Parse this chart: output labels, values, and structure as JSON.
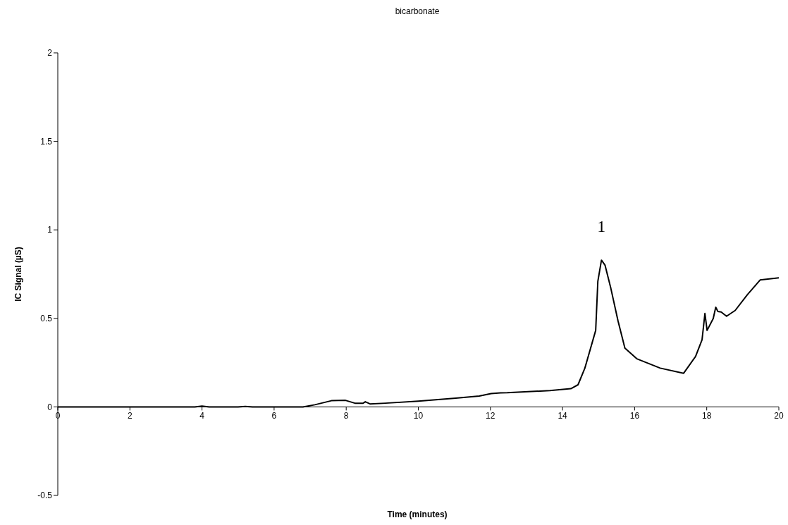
{
  "chart_data": {
    "type": "line",
    "title": "bicarbonate",
    "xlabel": "Time (minutes)",
    "ylabel": "IC Signal (µS)",
    "x": [
      0,
      1,
      2,
      3,
      3.8,
      4,
      4.2,
      5,
      5.2,
      5.4,
      6,
      6.8,
      7.13,
      7.59,
      7.98,
      8.24,
      8.47,
      8.53,
      8.66,
      9.09,
      10.0,
      11.04,
      11.69,
      12.02,
      12.28,
      12.47,
      13.65,
      14.23,
      14.43,
      14.62,
      14.92,
      14.98,
      15.08,
      15.18,
      15.34,
      15.54,
      15.73,
      16.06,
      16.71,
      17.36,
      17.69,
      17.87,
      17.95,
      18.01,
      18.18,
      18.25,
      18.31,
      18.4,
      18.55,
      18.79,
      19.12,
      19.48,
      20.0
    ],
    "series": [
      {
        "color": "#000000",
        "values": [
          0,
          0,
          0,
          0,
          0,
          0.005,
          0,
          0,
          0.003,
          0,
          0,
          0,
          0.012,
          0.035,
          0.037,
          0.021,
          0.021,
          0.029,
          0.017,
          0.021,
          0.032,
          0.049,
          0.061,
          0.075,
          0.079,
          0.08,
          0.092,
          0.103,
          0.125,
          0.219,
          0.432,
          0.71,
          0.829,
          0.8,
          0.67,
          0.485,
          0.332,
          0.272,
          0.219,
          0.19,
          0.285,
          0.379,
          0.528,
          0.432,
          0.499,
          0.563,
          0.539,
          0.536,
          0.512,
          0.545,
          0.632,
          0.717,
          0.729
        ]
      }
    ],
    "xlim": [
      0,
      20
    ],
    "xticks": [
      0,
      2,
      4,
      6,
      8,
      10,
      12,
      14,
      16,
      18,
      20
    ],
    "ylim": [
      -0.5,
      2
    ],
    "yticks": [
      -0.5,
      0,
      0.5,
      1,
      1.5,
      2
    ],
    "annotations": [
      {
        "text": "1",
        "x": 15.08,
        "y": 0.829
      }
    ],
    "grid": false,
    "legend": false,
    "marker": "none",
    "line_style": "solid"
  }
}
